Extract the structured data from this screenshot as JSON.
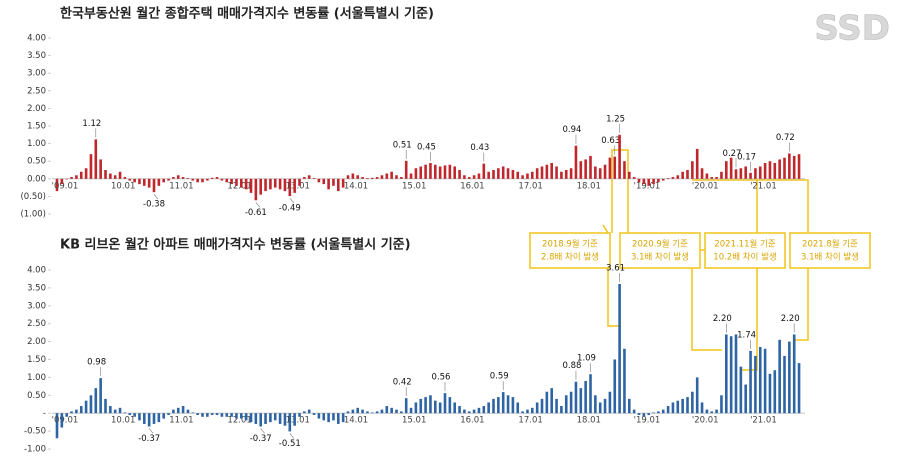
{
  "logo": "SSD",
  "callouts": [
    [
      "2018.9월 기준",
      "2.8배 차이 발생"
    ],
    [
      "2020.9월 기준",
      "3.1배 차이 발생"
    ],
    [
      "2021.11월 기준",
      "10.2배 차이 발생"
    ],
    [
      "2021.8월 기준",
      "3.1배 차이 발생"
    ]
  ],
  "chart_data": [
    {
      "type": "bar",
      "title": "한국부동산원 월간 종합주택 매매가격지수 변동률 (서울특별시 기준)",
      "color": "#c0272d",
      "negative_tick_color": "#c0272d",
      "ylim": [
        -1,
        4
      ],
      "yticks": [
        {
          "value": 4,
          "label": "4.00"
        },
        {
          "value": 3.5,
          "label": "3.50"
        },
        {
          "value": 3,
          "label": "3.00"
        },
        {
          "value": 2.5,
          "label": "2.50"
        },
        {
          "value": 2,
          "label": "2.00"
        },
        {
          "value": 1.5,
          "label": "1.50"
        },
        {
          "value": 1,
          "label": "1.00"
        },
        {
          "value": 0.5,
          "label": "0.50"
        },
        {
          "value": 0,
          "label": "0.00"
        },
        {
          "value": -0.5,
          "label": "(0.50)"
        },
        {
          "value": -1,
          "label": "(1.00)"
        }
      ],
      "categories": [
        "'09.01",
        null,
        null,
        null,
        null,
        null,
        null,
        null,
        null,
        null,
        null,
        null,
        "10.01",
        null,
        null,
        null,
        null,
        null,
        null,
        null,
        null,
        null,
        null,
        null,
        "11.01",
        null,
        null,
        null,
        null,
        null,
        null,
        null,
        null,
        null,
        null,
        null,
        "12.01",
        null,
        null,
        null,
        null,
        null,
        null,
        null,
        null,
        null,
        null,
        null,
        "13.01",
        null,
        null,
        null,
        null,
        null,
        null,
        null,
        null,
        null,
        null,
        null,
        "14.01",
        null,
        null,
        null,
        null,
        null,
        null,
        null,
        null,
        null,
        null,
        null,
        "15.01",
        null,
        null,
        null,
        null,
        null,
        null,
        null,
        null,
        null,
        null,
        null,
        "16.01",
        null,
        null,
        null,
        null,
        null,
        null,
        null,
        null,
        null,
        null,
        null,
        "17.01",
        null,
        null,
        null,
        null,
        null,
        null,
        null,
        null,
        null,
        null,
        null,
        "18.01",
        null,
        null,
        null,
        null,
        null,
        null,
        null,
        null,
        null,
        null,
        null,
        "'19.01",
        null,
        null,
        null,
        null,
        null,
        null,
        null,
        null,
        null,
        null,
        null,
        "'20.01",
        null,
        null,
        null,
        null,
        null,
        null,
        null,
        null,
        null,
        null,
        null,
        "'21.01",
        null,
        null,
        null,
        null,
        null,
        null,
        null,
        null,
        null
      ],
      "values": [
        -0.35,
        -0.15,
        0.0,
        0.05,
        0.1,
        0.2,
        0.3,
        0.7,
        1.12,
        0.55,
        0.25,
        0.15,
        0.1,
        0.2,
        0.05,
        -0.05,
        -0.1,
        -0.15,
        -0.2,
        -0.25,
        -0.38,
        -0.2,
        -0.1,
        -0.05,
        0.05,
        0.1,
        0.05,
        0.02,
        -0.05,
        -0.1,
        -0.1,
        -0.05,
        0.03,
        0.05,
        -0.05,
        -0.1,
        -0.15,
        -0.2,
        -0.25,
        -0.3,
        -0.4,
        -0.61,
        -0.45,
        -0.35,
        -0.3,
        -0.25,
        -0.3,
        -0.35,
        -0.49,
        -0.4,
        -0.2,
        0.05,
        0.1,
        0.02,
        -0.1,
        -0.15,
        -0.3,
        -0.2,
        -0.35,
        -0.25,
        0.1,
        0.15,
        0.1,
        0.05,
        0.02,
        0.03,
        0.05,
        0.1,
        0.15,
        0.2,
        0.1,
        0.05,
        0.51,
        0.15,
        0.3,
        0.35,
        0.4,
        0.45,
        0.4,
        0.35,
        0.38,
        0.4,
        0.35,
        0.25,
        0.1,
        0.05,
        0.1,
        0.15,
        0.43,
        0.2,
        0.25,
        0.3,
        0.35,
        0.3,
        0.25,
        0.2,
        0.1,
        0.15,
        0.2,
        0.3,
        0.35,
        0.4,
        0.45,
        0.35,
        0.2,
        0.25,
        0.3,
        0.94,
        0.5,
        0.55,
        0.65,
        0.35,
        0.3,
        0.4,
        0.6,
        0.63,
        1.25,
        0.5,
        0.2,
        0.05,
        -0.1,
        -0.15,
        -0.2,
        -0.15,
        -0.1,
        -0.05,
        0.02,
        0.05,
        0.1,
        0.2,
        0.25,
        0.5,
        0.85,
        0.3,
        0.15,
        0.05,
        0.05,
        0.2,
        0.5,
        0.6,
        0.27,
        0.3,
        0.35,
        0.17,
        0.3,
        0.35,
        0.45,
        0.5,
        0.45,
        0.55,
        0.6,
        0.72,
        0.65,
        0.7
      ],
      "value_labels": [
        null,
        null,
        null,
        null,
        null,
        null,
        null,
        null,
        "1.12",
        null,
        null,
        null,
        null,
        null,
        null,
        null,
        null,
        null,
        null,
        null,
        "-0.38",
        null,
        null,
        null,
        null,
        null,
        null,
        null,
        null,
        null,
        null,
        null,
        null,
        null,
        null,
        null,
        null,
        null,
        null,
        null,
        null,
        "-0.61",
        null,
        null,
        null,
        null,
        null,
        null,
        "-0.49",
        null,
        null,
        null,
        null,
        null,
        null,
        null,
        null,
        null,
        null,
        null,
        null,
        null,
        null,
        null,
        null,
        null,
        null,
        null,
        null,
        null,
        null,
        null,
        "0.51",
        null,
        null,
        null,
        null,
        "0.45",
        null,
        null,
        null,
        null,
        null,
        null,
        null,
        null,
        null,
        null,
        "0.43",
        null,
        null,
        null,
        null,
        null,
        null,
        null,
        null,
        null,
        null,
        null,
        null,
        null,
        null,
        null,
        null,
        null,
        null,
        "0.94",
        null,
        null,
        null,
        null,
        null,
        null,
        null,
        "0.63",
        "1.25",
        null,
        null,
        null,
        null,
        null,
        null,
        null,
        null,
        null,
        null,
        null,
        null,
        null,
        null,
        null,
        null,
        null,
        null,
        null,
        null,
        null,
        null,
        null,
        "0.27",
        null,
        null,
        "0.17",
        null,
        null,
        null,
        null,
        null,
        null,
        null,
        "0.72",
        null,
        null
      ]
    },
    {
      "type": "bar",
      "title": "KB 리브온 월간 아파트 매매가격지수 변동률 (서울특별시 기준)",
      "color": "#2e64a4",
      "ylim": [
        -1,
        4
      ],
      "yticks": [
        {
          "value": 4,
          "label": "4.00"
        },
        {
          "value": 3.5,
          "label": "3.50"
        },
        {
          "value": 3,
          "label": "3.00"
        },
        {
          "value": 2.5,
          "label": "2.50"
        },
        {
          "value": 2,
          "label": "2.00"
        },
        {
          "value": 1.5,
          "label": "1.50"
        },
        {
          "value": 1,
          "label": "1.00"
        },
        {
          "value": 0.5,
          "label": "0.50"
        },
        {
          "value": 0,
          "label": "-"
        },
        {
          "value": -0.5,
          "label": "-0.50"
        },
        {
          "value": -1,
          "label": "-1.00"
        }
      ],
      "categories": [
        "'09.01",
        null,
        null,
        null,
        null,
        null,
        null,
        null,
        null,
        null,
        null,
        null,
        "10.01",
        null,
        null,
        null,
        null,
        null,
        null,
        null,
        null,
        null,
        null,
        null,
        "11.01",
        null,
        null,
        null,
        null,
        null,
        null,
        null,
        null,
        null,
        null,
        null,
        "12.01",
        null,
        null,
        null,
        null,
        null,
        null,
        null,
        null,
        null,
        null,
        null,
        "13.01",
        null,
        null,
        null,
        null,
        null,
        null,
        null,
        null,
        null,
        null,
        null,
        "14.01",
        null,
        null,
        null,
        null,
        null,
        null,
        null,
        null,
        null,
        null,
        null,
        "15.01",
        null,
        null,
        null,
        null,
        null,
        null,
        null,
        null,
        null,
        null,
        null,
        "16.01",
        null,
        null,
        null,
        null,
        null,
        null,
        null,
        null,
        null,
        null,
        null,
        "17.01",
        null,
        null,
        null,
        null,
        null,
        null,
        null,
        null,
        null,
        null,
        null,
        "18.01",
        null,
        null,
        null,
        null,
        null,
        null,
        null,
        null,
        null,
        null,
        null,
        "'19.01",
        null,
        null,
        null,
        null,
        null,
        null,
        null,
        null,
        null,
        null,
        null,
        "'20.01",
        null,
        null,
        null,
        null,
        null,
        null,
        null,
        null,
        null,
        null,
        null,
        "'21.01",
        null,
        null,
        null,
        null,
        null,
        null,
        null,
        null,
        null
      ],
      "values": [
        -0.7,
        -0.4,
        -0.1,
        0.05,
        0.1,
        0.2,
        0.35,
        0.5,
        0.7,
        0.98,
        0.4,
        0.2,
        0.1,
        0.15,
        0.02,
        -0.05,
        -0.1,
        -0.2,
        -0.3,
        -0.37,
        -0.3,
        -0.25,
        -0.15,
        -0.05,
        0.1,
        0.15,
        0.2,
        0.1,
        0.02,
        -0.05,
        -0.1,
        -0.1,
        -0.05,
        -0.05,
        -0.1,
        -0.1,
        -0.1,
        -0.15,
        -0.15,
        -0.2,
        -0.25,
        -0.3,
        -0.37,
        -0.3,
        -0.25,
        -0.2,
        -0.3,
        -0.35,
        -0.51,
        -0.35,
        -0.1,
        0.05,
        0.1,
        -0.05,
        -0.15,
        -0.2,
        -0.25,
        -0.2,
        -0.3,
        -0.25,
        0.05,
        0.1,
        0.15,
        0.1,
        0.05,
        0.02,
        0.05,
        0.1,
        0.2,
        0.15,
        0.1,
        0.05,
        0.42,
        0.15,
        0.3,
        0.4,
        0.45,
        0.5,
        0.35,
        0.3,
        0.56,
        0.45,
        0.3,
        0.2,
        0.1,
        0.05,
        0.1,
        0.15,
        0.2,
        0.3,
        0.4,
        0.45,
        0.59,
        0.5,
        0.45,
        0.3,
        0.05,
        0.1,
        0.15,
        0.3,
        0.4,
        0.6,
        0.7,
        0.4,
        0.2,
        0.5,
        0.6,
        0.88,
        0.7,
        0.9,
        1.09,
        0.5,
        0.3,
        0.4,
        0.6,
        1.5,
        3.61,
        1.8,
        0.4,
        0.1,
        -0.05,
        -0.1,
        -0.05,
        0.02,
        0.05,
        0.1,
        0.2,
        0.3,
        0.35,
        0.4,
        0.45,
        0.6,
        1.0,
        0.3,
        0.1,
        0.05,
        0.1,
        0.5,
        2.2,
        2.15,
        2.2,
        1.3,
        0.8,
        1.74,
        1.6,
        1.85,
        1.8,
        1.1,
        1.2,
        2.05,
        1.6,
        2.0,
        2.2,
        1.4
      ],
      "value_labels": [
        null,
        null,
        null,
        null,
        null,
        null,
        null,
        null,
        null,
        "0.98",
        null,
        null,
        null,
        null,
        null,
        null,
        null,
        null,
        null,
        "-0.37",
        null,
        null,
        null,
        null,
        null,
        null,
        null,
        null,
        null,
        null,
        null,
        null,
        null,
        null,
        null,
        null,
        null,
        null,
        null,
        null,
        null,
        null,
        "-0.37",
        null,
        null,
        null,
        null,
        null,
        "-0.51",
        null,
        null,
        null,
        null,
        null,
        null,
        null,
        null,
        null,
        null,
        null,
        null,
        null,
        null,
        null,
        null,
        null,
        null,
        null,
        null,
        null,
        null,
        null,
        "0.42",
        null,
        null,
        null,
        null,
        null,
        null,
        null,
        "0.56",
        null,
        null,
        null,
        null,
        null,
        null,
        null,
        null,
        null,
        null,
        null,
        "0.59",
        null,
        null,
        null,
        null,
        null,
        null,
        null,
        null,
        null,
        null,
        null,
        null,
        null,
        null,
        "0.88",
        null,
        null,
        "1.09",
        null,
        null,
        null,
        null,
        null,
        "3.61",
        null,
        null,
        null,
        null,
        null,
        null,
        null,
        null,
        null,
        null,
        null,
        null,
        null,
        null,
        null,
        null,
        null,
        null,
        null,
        null,
        null,
        "2.20",
        null,
        null,
        null,
        null,
        "1.74",
        null,
        null,
        null,
        null,
        null,
        null,
        null,
        null,
        "2.20",
        null
      ]
    }
  ]
}
